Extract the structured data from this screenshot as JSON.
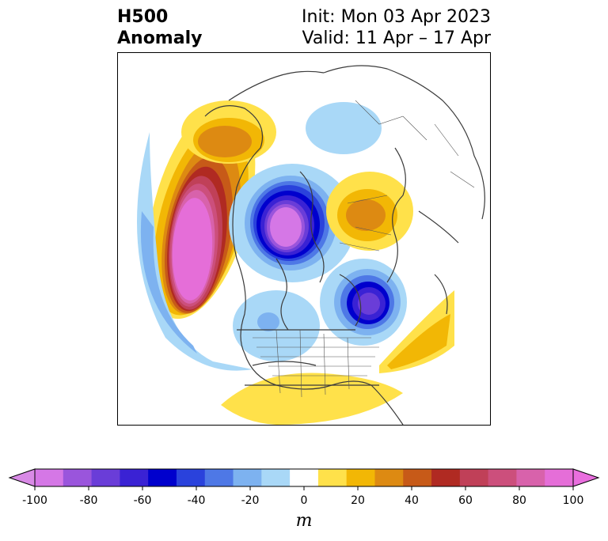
{
  "title": {
    "variable_line1": "H500",
    "variable_line2": "Anomaly",
    "init": "Init: Mon 03 Apr 2023",
    "valid": "Valid: 11 Apr – 17 Apr"
  },
  "colorbar": {
    "unit": "m",
    "ticks": [
      "-100",
      "-80",
      "-60",
      "-40",
      "-20",
      "0",
      "20",
      "40",
      "60",
      "80",
      "100"
    ],
    "colors": [
      "#d577e6",
      "#9a55dc",
      "#6a3dd8",
      "#3a22d4",
      "#0000cd",
      "#2a42dc",
      "#4e78e6",
      "#7db2f0",
      "#a9d8f7",
      "#ffffff",
      "#ffe14a",
      "#f2b705",
      "#dd8a12",
      "#c75a18",
      "#b02a22",
      "#c04058",
      "#cc4f7c",
      "#d862ab",
      "#e56ed8"
    ],
    "under_color": "#d98ae6",
    "over_color": "#e96ede"
  },
  "map": {
    "projection": "north-polar-stereographic",
    "field": "500 hPa geopotential height anomaly"
  }
}
